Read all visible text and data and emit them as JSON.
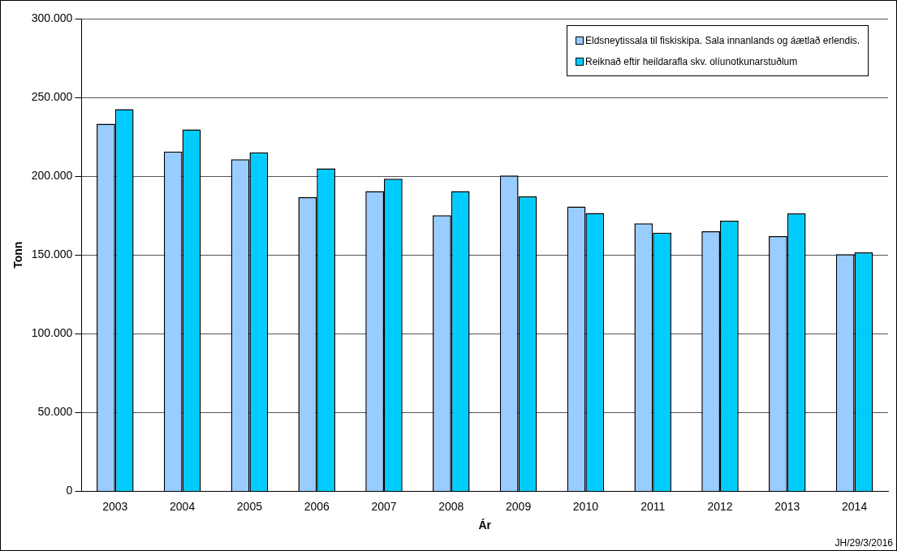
{
  "chart_data": {
    "type": "bar",
    "xlabel": "Ár",
    "ylabel": "Tonn",
    "categories": [
      "2003",
      "2004",
      "2005",
      "2006",
      "2007",
      "2008",
      "2009",
      "2010",
      "2011",
      "2012",
      "2013",
      "2014"
    ],
    "series": [
      {
        "name": "Eldsneytissala til fiskiskipa. Sala innanlands og áætlað erlendis.",
        "color": "#99ccff",
        "values": [
          233300,
          215600,
          210800,
          186700,
          190500,
          175200,
          200500,
          180800,
          170000,
          165100,
          162000,
          150500
        ]
      },
      {
        "name": "Reiknað eftir heildarafla skv. olíunotkunarstuðlum",
        "color": "#00ccff",
        "values": [
          242600,
          229700,
          215100,
          205000,
          198400,
          190500,
          187200,
          176600,
          164200,
          171800,
          176400,
          151600
        ]
      }
    ],
    "ylim": [
      0,
      300000
    ],
    "yticks": [
      {
        "value": 0,
        "label": "0"
      },
      {
        "value": 50000,
        "label": "50.000"
      },
      {
        "value": 100000,
        "label": "100.000"
      },
      {
        "value": 150000,
        "label": "150.000"
      },
      {
        "value": 200000,
        "label": "200.000"
      },
      {
        "value": 250000,
        "label": "250.000"
      },
      {
        "value": 300000,
        "label": "300.000"
      }
    ],
    "grid": "y",
    "legend": "top right",
    "annotations": [
      "JH/29/3/2016"
    ]
  }
}
